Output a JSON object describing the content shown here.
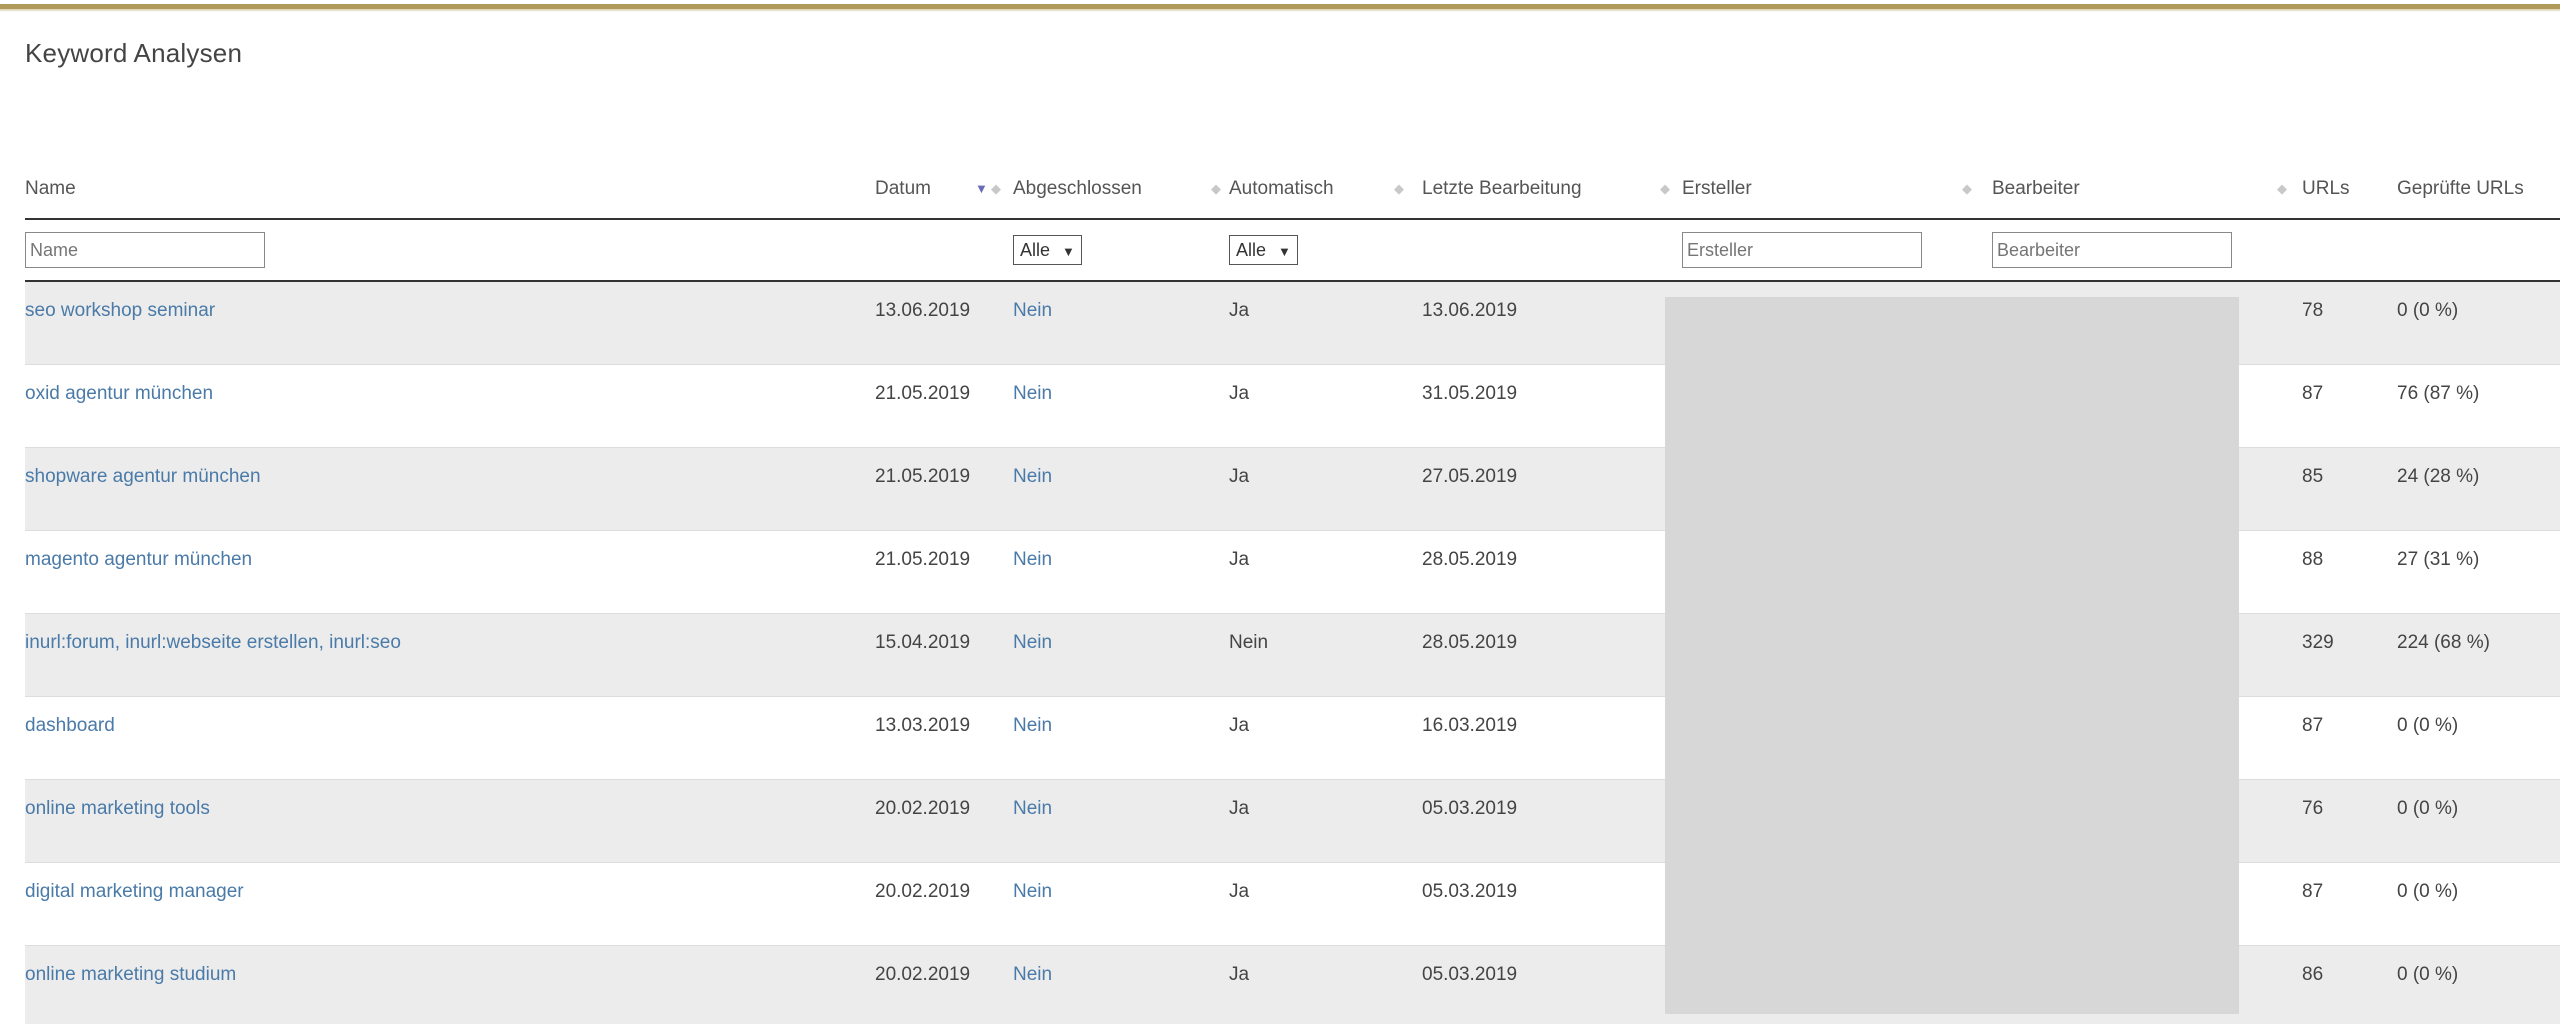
{
  "page": {
    "title": "Keyword Analysen"
  },
  "columns": {
    "name": "Name",
    "datum": "Datum",
    "abgeschlossen": "Abgeschlossen",
    "automatisch": "Automatisch",
    "letzte": "Letzte Bearbeitung",
    "ersteller": "Ersteller",
    "bearbeiter": "Bearbeiter",
    "urls": "URLs",
    "gepruefte": "Geprüfte URLs"
  },
  "filters": {
    "name_placeholder": "Name",
    "abgeschlossen_value": "Alle",
    "automatisch_value": "Alle",
    "ersteller_placeholder": "Ersteller",
    "bearbeiter_placeholder": "Bearbeiter"
  },
  "icons": {
    "sort_active": "sort-desc-icon",
    "sort_inactive": "sort-both-icon",
    "dropdown": "triangle-down-icon"
  },
  "colors": {
    "accent_gold": "#b09a5a",
    "link_blue": "#4a7aa8",
    "row_stripe": "#ececec",
    "redaction": "#d7d7d7"
  },
  "rows": [
    {
      "name": "seo workshop seminar",
      "datum": "13.06.2019",
      "abgeschlossen": "Nein",
      "automatisch": "Ja",
      "letzte": "13.06.2019",
      "ersteller": "",
      "bearbeiter": "",
      "urls": "78",
      "gepruefte": "0 (0 %)"
    },
    {
      "name": "oxid agentur münchen",
      "datum": "21.05.2019",
      "abgeschlossen": "Nein",
      "automatisch": "Ja",
      "letzte": "31.05.2019",
      "ersteller": "",
      "bearbeiter": "",
      "urls": "87",
      "gepruefte": "76 (87 %)"
    },
    {
      "name": "shopware agentur münchen",
      "datum": "21.05.2019",
      "abgeschlossen": "Nein",
      "automatisch": "Ja",
      "letzte": "27.05.2019",
      "ersteller": "",
      "bearbeiter": "",
      "urls": "85",
      "gepruefte": "24 (28 %)"
    },
    {
      "name": "magento agentur münchen",
      "datum": "21.05.2019",
      "abgeschlossen": "Nein",
      "automatisch": "Ja",
      "letzte": "28.05.2019",
      "ersteller": "",
      "bearbeiter": "",
      "urls": "88",
      "gepruefte": "27 (31 %)"
    },
    {
      "name": "inurl:forum, inurl:webseite erstellen, inurl:seo",
      "datum": "15.04.2019",
      "abgeschlossen": "Nein",
      "automatisch": "Nein",
      "letzte": "28.05.2019",
      "ersteller": "",
      "bearbeiter": "",
      "urls": "329",
      "gepruefte": "224 (68 %)"
    },
    {
      "name": "dashboard",
      "datum": "13.03.2019",
      "abgeschlossen": "Nein",
      "automatisch": "Ja",
      "letzte": "16.03.2019",
      "ersteller": "",
      "bearbeiter": "",
      "urls": "87",
      "gepruefte": "0 (0 %)"
    },
    {
      "name": "online marketing tools",
      "datum": "20.02.2019",
      "abgeschlossen": "Nein",
      "automatisch": "Ja",
      "letzte": "05.03.2019",
      "ersteller": "",
      "bearbeiter": "",
      "urls": "76",
      "gepruefte": "0 (0 %)"
    },
    {
      "name": "digital marketing manager",
      "datum": "20.02.2019",
      "abgeschlossen": "Nein",
      "automatisch": "Ja",
      "letzte": "05.03.2019",
      "ersteller": "",
      "bearbeiter": "",
      "urls": "87",
      "gepruefte": "0 (0 %)"
    },
    {
      "name": "online marketing studium",
      "datum": "20.02.2019",
      "abgeschlossen": "Nein",
      "automatisch": "Ja",
      "letzte": "05.03.2019",
      "ersteller": "",
      "bearbeiter": "",
      "urls": "86",
      "gepruefte": "0 (0 %)"
    }
  ]
}
